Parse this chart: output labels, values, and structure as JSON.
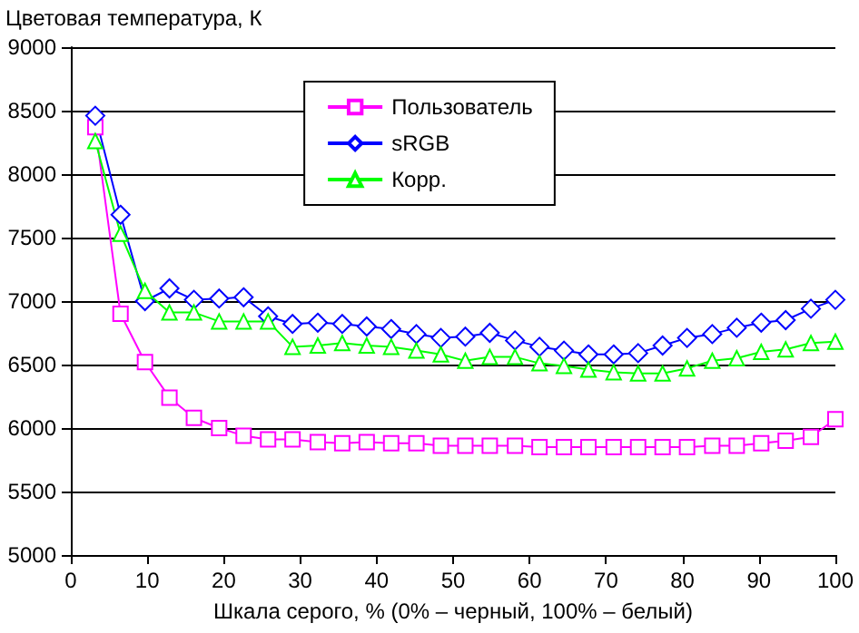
{
  "chart_data": {
    "type": "line",
    "ylabel": "Цветовая температура, К",
    "xlabel": "Шкала серого, % (0% – черный, 100% – белый)",
    "x": [
      3.2,
      6.5,
      9.7,
      12.9,
      16.1,
      19.4,
      22.6,
      25.8,
      29,
      32.3,
      35.5,
      38.7,
      41.9,
      45.2,
      48.4,
      51.6,
      54.8,
      58.1,
      61.3,
      64.5,
      67.7,
      71,
      74.2,
      77.4,
      80.6,
      83.9,
      87.1,
      90.3,
      93.5,
      96.8,
      100
    ],
    "series": [
      {
        "name": "Пользователь",
        "color": "#ff00ff",
        "marker": "square",
        "values": [
          8370,
          6900,
          6520,
          6240,
          6080,
          6000,
          5940,
          5910,
          5910,
          5890,
          5880,
          5890,
          5880,
          5880,
          5860,
          5860,
          5860,
          5860,
          5850,
          5850,
          5850,
          5850,
          5850,
          5850,
          5850,
          5860,
          5860,
          5880,
          5900,
          5930,
          6070
        ]
      },
      {
        "name": "sRGB",
        "color": "#0000ff",
        "marker": "diamond",
        "values": [
          8460,
          7680,
          7000,
          7100,
          7010,
          7020,
          7030,
          6880,
          6820,
          6830,
          6820,
          6800,
          6780,
          6740,
          6710,
          6720,
          6750,
          6690,
          6640,
          6610,
          6580,
          6580,
          6590,
          6650,
          6710,
          6740,
          6790,
          6830,
          6850,
          6940,
          7010
        ]
      },
      {
        "name": "Корр.",
        "color": "#00ff00",
        "marker": "triangle",
        "values": [
          8260,
          7530,
          7080,
          6910,
          6910,
          6840,
          6840,
          6840,
          6640,
          6650,
          6670,
          6650,
          6640,
          6610,
          6580,
          6530,
          6560,
          6560,
          6510,
          6490,
          6460,
          6440,
          6430,
          6430,
          6470,
          6530,
          6550,
          6600,
          6620,
          6670,
          6680
        ]
      }
    ],
    "xlim": [
      0,
      100
    ],
    "xticks": [
      0,
      10,
      20,
      30,
      40,
      50,
      60,
      70,
      80,
      90,
      100
    ],
    "ylim": [
      5000,
      9000
    ],
    "yticks": [
      5000,
      5500,
      6000,
      6500,
      7000,
      7500,
      8000,
      8500,
      9000
    ],
    "grid": "y",
    "legend": "top"
  }
}
